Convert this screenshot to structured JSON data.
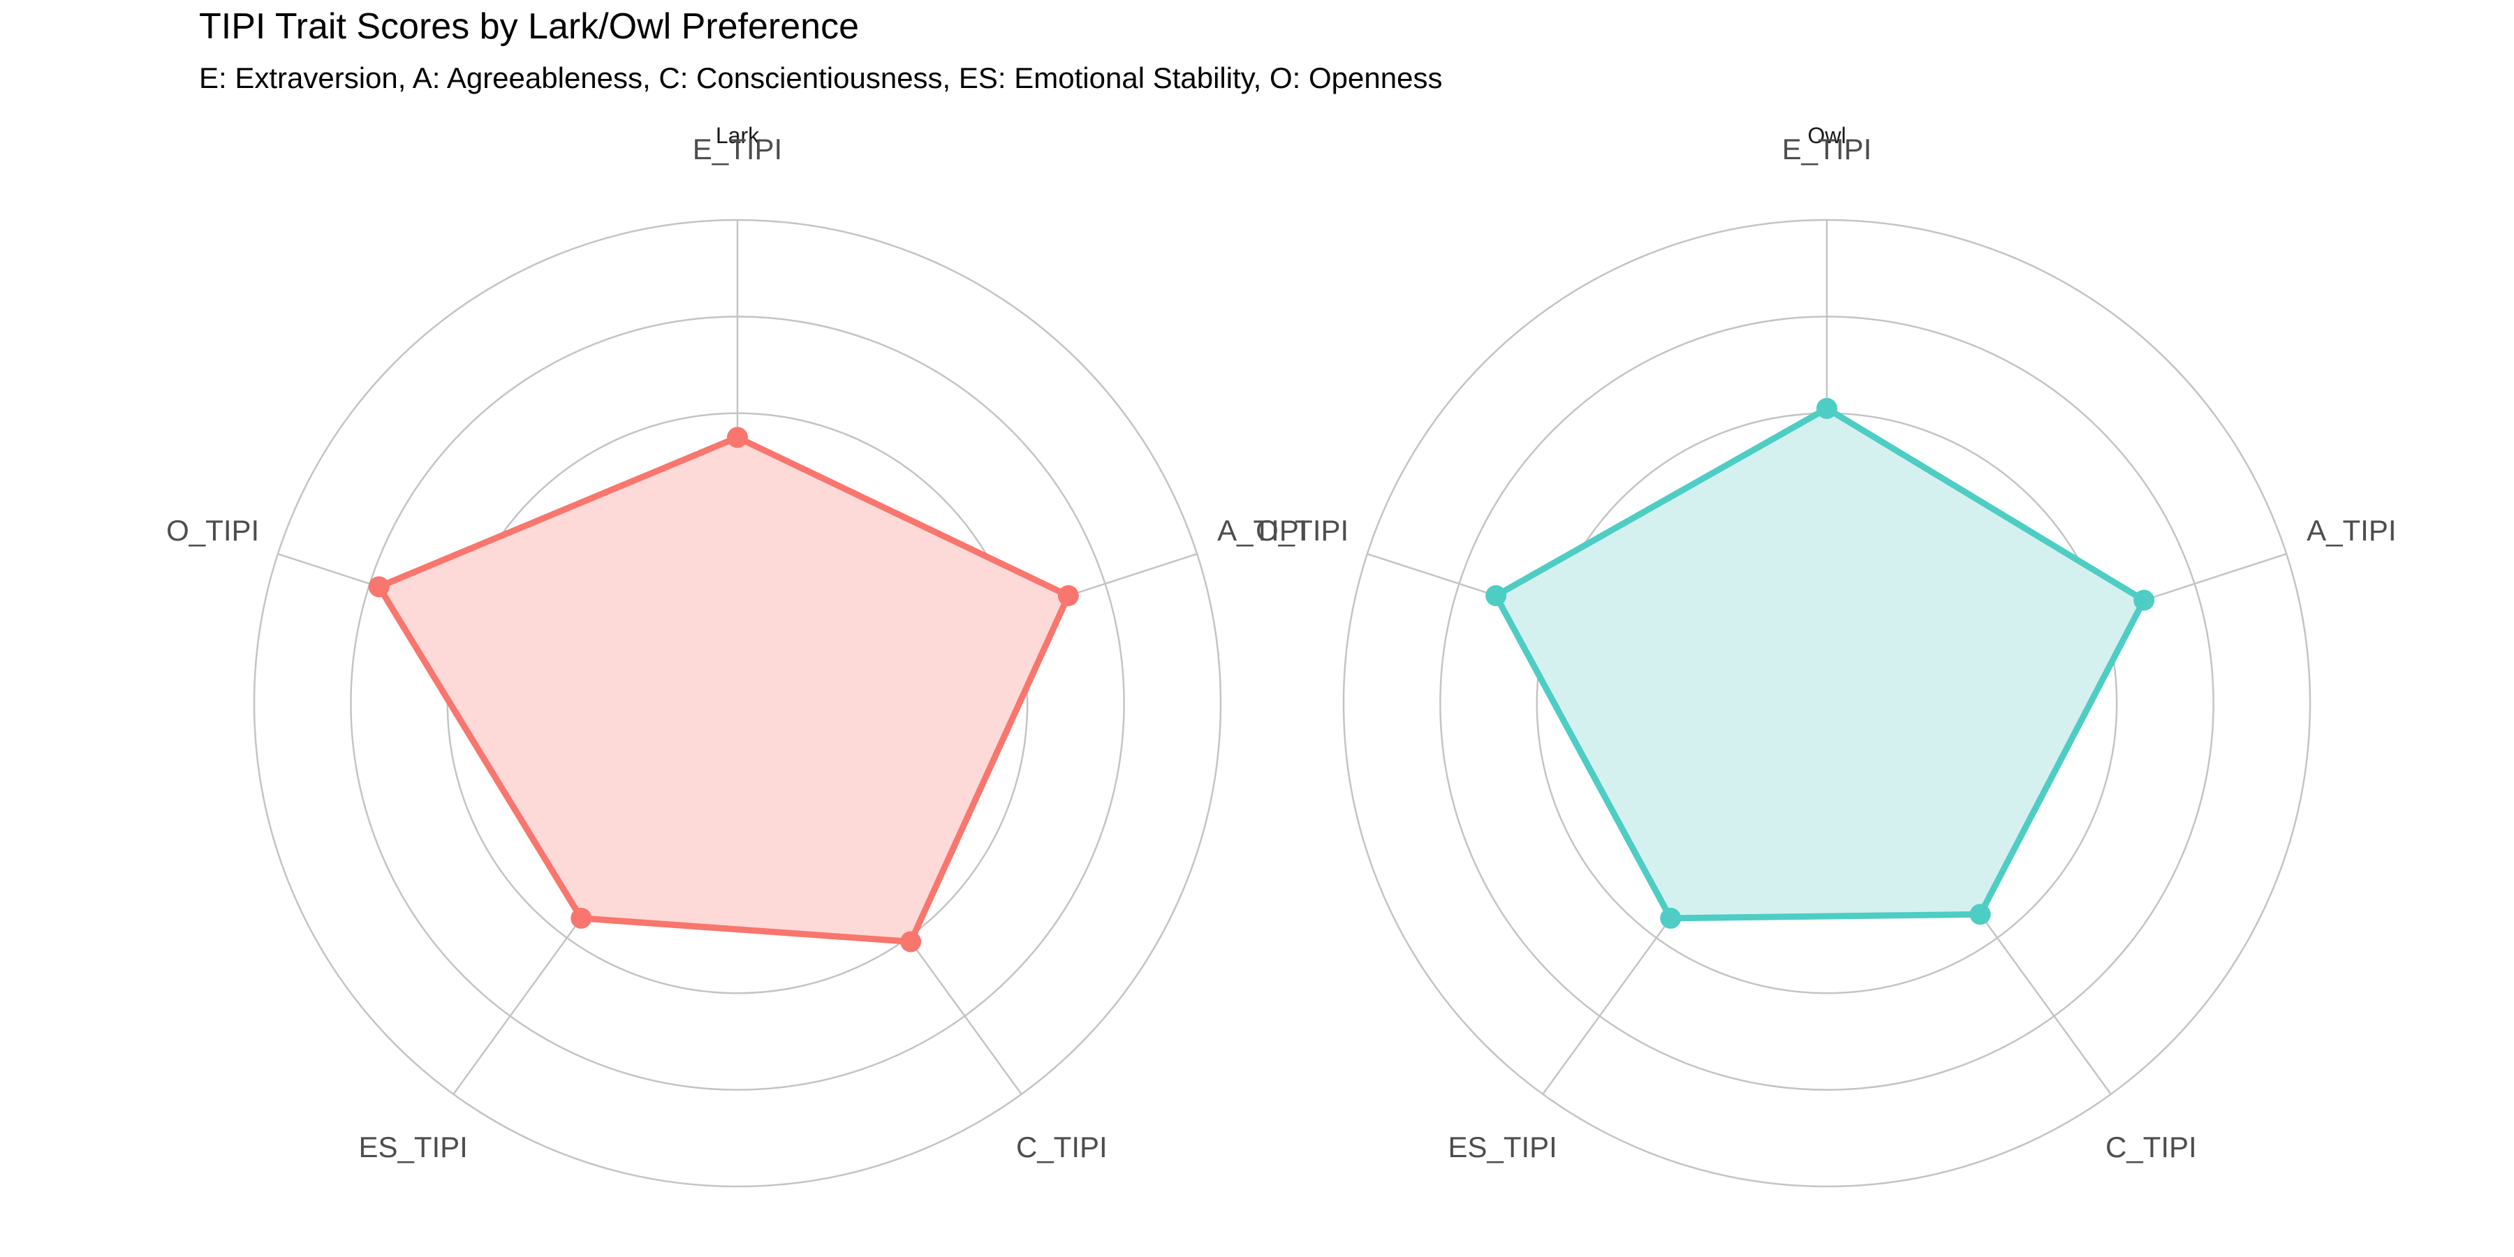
{
  "title": "TIPI Trait Scores by Lark/Owl Preference",
  "subtitle": "E: Extraversion, A: Agreeableness, C: Conscientiousness, ES: Emotional Stability, O: Openness",
  "chart_data": {
    "type": "radar",
    "axes": [
      "E_TIPI",
      "A_TIPI",
      "C_TIPI",
      "ES_TIPI",
      "O_TIPI"
    ],
    "ring_count": 5,
    "grid": true,
    "legend": "none",
    "series": [
      {
        "name": "Lark",
        "color": "#F8766D",
        "fill": "#FDD9D8",
        "values": [
          0.55,
          0.72,
          0.61,
          0.55,
          0.78
        ]
      },
      {
        "name": "Owl",
        "color": "#4ECDC4",
        "fill": "#D4F1EF",
        "values": [
          0.61,
          0.69,
          0.54,
          0.55,
          0.72
        ]
      }
    ]
  }
}
